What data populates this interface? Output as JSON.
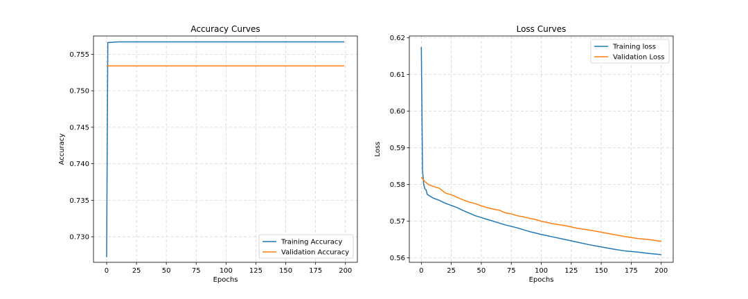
{
  "chart_data": [
    {
      "type": "line",
      "title": "Accuracy Curves",
      "xlabel": "Epochs",
      "ylabel": "Accuracy",
      "xlim": [
        -11,
        210
      ],
      "ylim": [
        0.7265,
        0.7575
      ],
      "xticks": [
        0,
        25,
        50,
        75,
        100,
        125,
        150,
        175,
        200
      ],
      "yticks": [
        0.73,
        0.735,
        0.74,
        0.745,
        0.75,
        0.755
      ],
      "ytick_labels": [
        "0.730",
        "0.735",
        "0.740",
        "0.745",
        "0.750",
        "0.755"
      ],
      "grid": true,
      "legend_position": "lower right",
      "series": [
        {
          "name": "Training Accuracy",
          "color": "#1f77b4",
          "points": [
            [
              0,
              0.7272
            ],
            [
              1,
              0.7566
            ],
            [
              10,
              0.7567
            ],
            [
              50,
              0.7567
            ],
            [
              100,
              0.7567
            ],
            [
              150,
              0.7567
            ],
            [
              199,
              0.7567
            ]
          ]
        },
        {
          "name": "Validation Accuracy",
          "color": "#ff7f0e",
          "points": [
            [
              0,
              0.7534
            ],
            [
              50,
              0.7534
            ],
            [
              100,
              0.7534
            ],
            [
              150,
              0.7534
            ],
            [
              199,
              0.7534
            ]
          ]
        }
      ]
    },
    {
      "type": "line",
      "title": "Loss Curves",
      "xlabel": "Epochs",
      "ylabel": "Loss",
      "xlim": [
        -10,
        210
      ],
      "ylim": [
        0.5588,
        0.6205
      ],
      "xticks": [
        0,
        25,
        50,
        75,
        100,
        125,
        150,
        175,
        200
      ],
      "yticks": [
        0.56,
        0.57,
        0.58,
        0.59,
        0.6,
        0.61,
        0.62
      ],
      "ytick_labels": [
        "0.56",
        "0.57",
        "0.58",
        "0.59",
        "0.60",
        "0.61",
        "0.62"
      ],
      "grid": true,
      "legend_position": "upper right",
      "series": [
        {
          "name": "Training loss",
          "color": "#1f77b4",
          "points": [
            [
              0,
              0.6175
            ],
            [
              1,
              0.584
            ],
            [
              2,
              0.58
            ],
            [
              3,
              0.5788
            ],
            [
              4,
              0.5785
            ],
            [
              5,
              0.5773
            ],
            [
              10,
              0.5763
            ],
            [
              15,
              0.5757
            ],
            [
              20,
              0.5749
            ],
            [
              25,
              0.5743
            ],
            [
              30,
              0.5737
            ],
            [
              35,
              0.5729
            ],
            [
              40,
              0.5722
            ],
            [
              45,
              0.5715
            ],
            [
              50,
              0.571
            ],
            [
              55,
              0.5705
            ],
            [
              60,
              0.57
            ],
            [
              65,
              0.5695
            ],
            [
              70,
              0.569
            ],
            [
              75,
              0.5686
            ],
            [
              80,
              0.5682
            ],
            [
              85,
              0.5677
            ],
            [
              90,
              0.5672
            ],
            [
              95,
              0.5668
            ],
            [
              100,
              0.5664
            ],
            [
              110,
              0.5657
            ],
            [
              120,
              0.565
            ],
            [
              130,
              0.5643
            ],
            [
              140,
              0.5636
            ],
            [
              150,
              0.563
            ],
            [
              160,
              0.5624
            ],
            [
              170,
              0.5619
            ],
            [
              180,
              0.5616
            ],
            [
              190,
              0.5612
            ],
            [
              200,
              0.5609
            ]
          ]
        },
        {
          "name": "Validation Loss",
          "color": "#ff7f0e",
          "points": [
            [
              0,
              0.582
            ],
            [
              3,
              0.5808
            ],
            [
              6,
              0.58
            ],
            [
              10,
              0.5795
            ],
            [
              15,
              0.579
            ],
            [
              20,
              0.5777
            ],
            [
              25,
              0.5772
            ],
            [
              30,
              0.5765
            ],
            [
              35,
              0.5758
            ],
            [
              40,
              0.5752
            ],
            [
              45,
              0.5748
            ],
            [
              50,
              0.5742
            ],
            [
              55,
              0.5737
            ],
            [
              60,
              0.5733
            ],
            [
              65,
              0.573
            ],
            [
              70,
              0.5723
            ],
            [
              75,
              0.572
            ],
            [
              80,
              0.5715
            ],
            [
              85,
              0.5712
            ],
            [
              90,
              0.5708
            ],
            [
              95,
              0.5705
            ],
            [
              100,
              0.57
            ],
            [
              110,
              0.5693
            ],
            [
              120,
              0.5688
            ],
            [
              130,
              0.5681
            ],
            [
              140,
              0.5676
            ],
            [
              150,
              0.567
            ],
            [
              160,
              0.5664
            ],
            [
              170,
              0.5658
            ],
            [
              180,
              0.5653
            ],
            [
              190,
              0.565
            ],
            [
              200,
              0.5645
            ]
          ]
        }
      ]
    }
  ]
}
